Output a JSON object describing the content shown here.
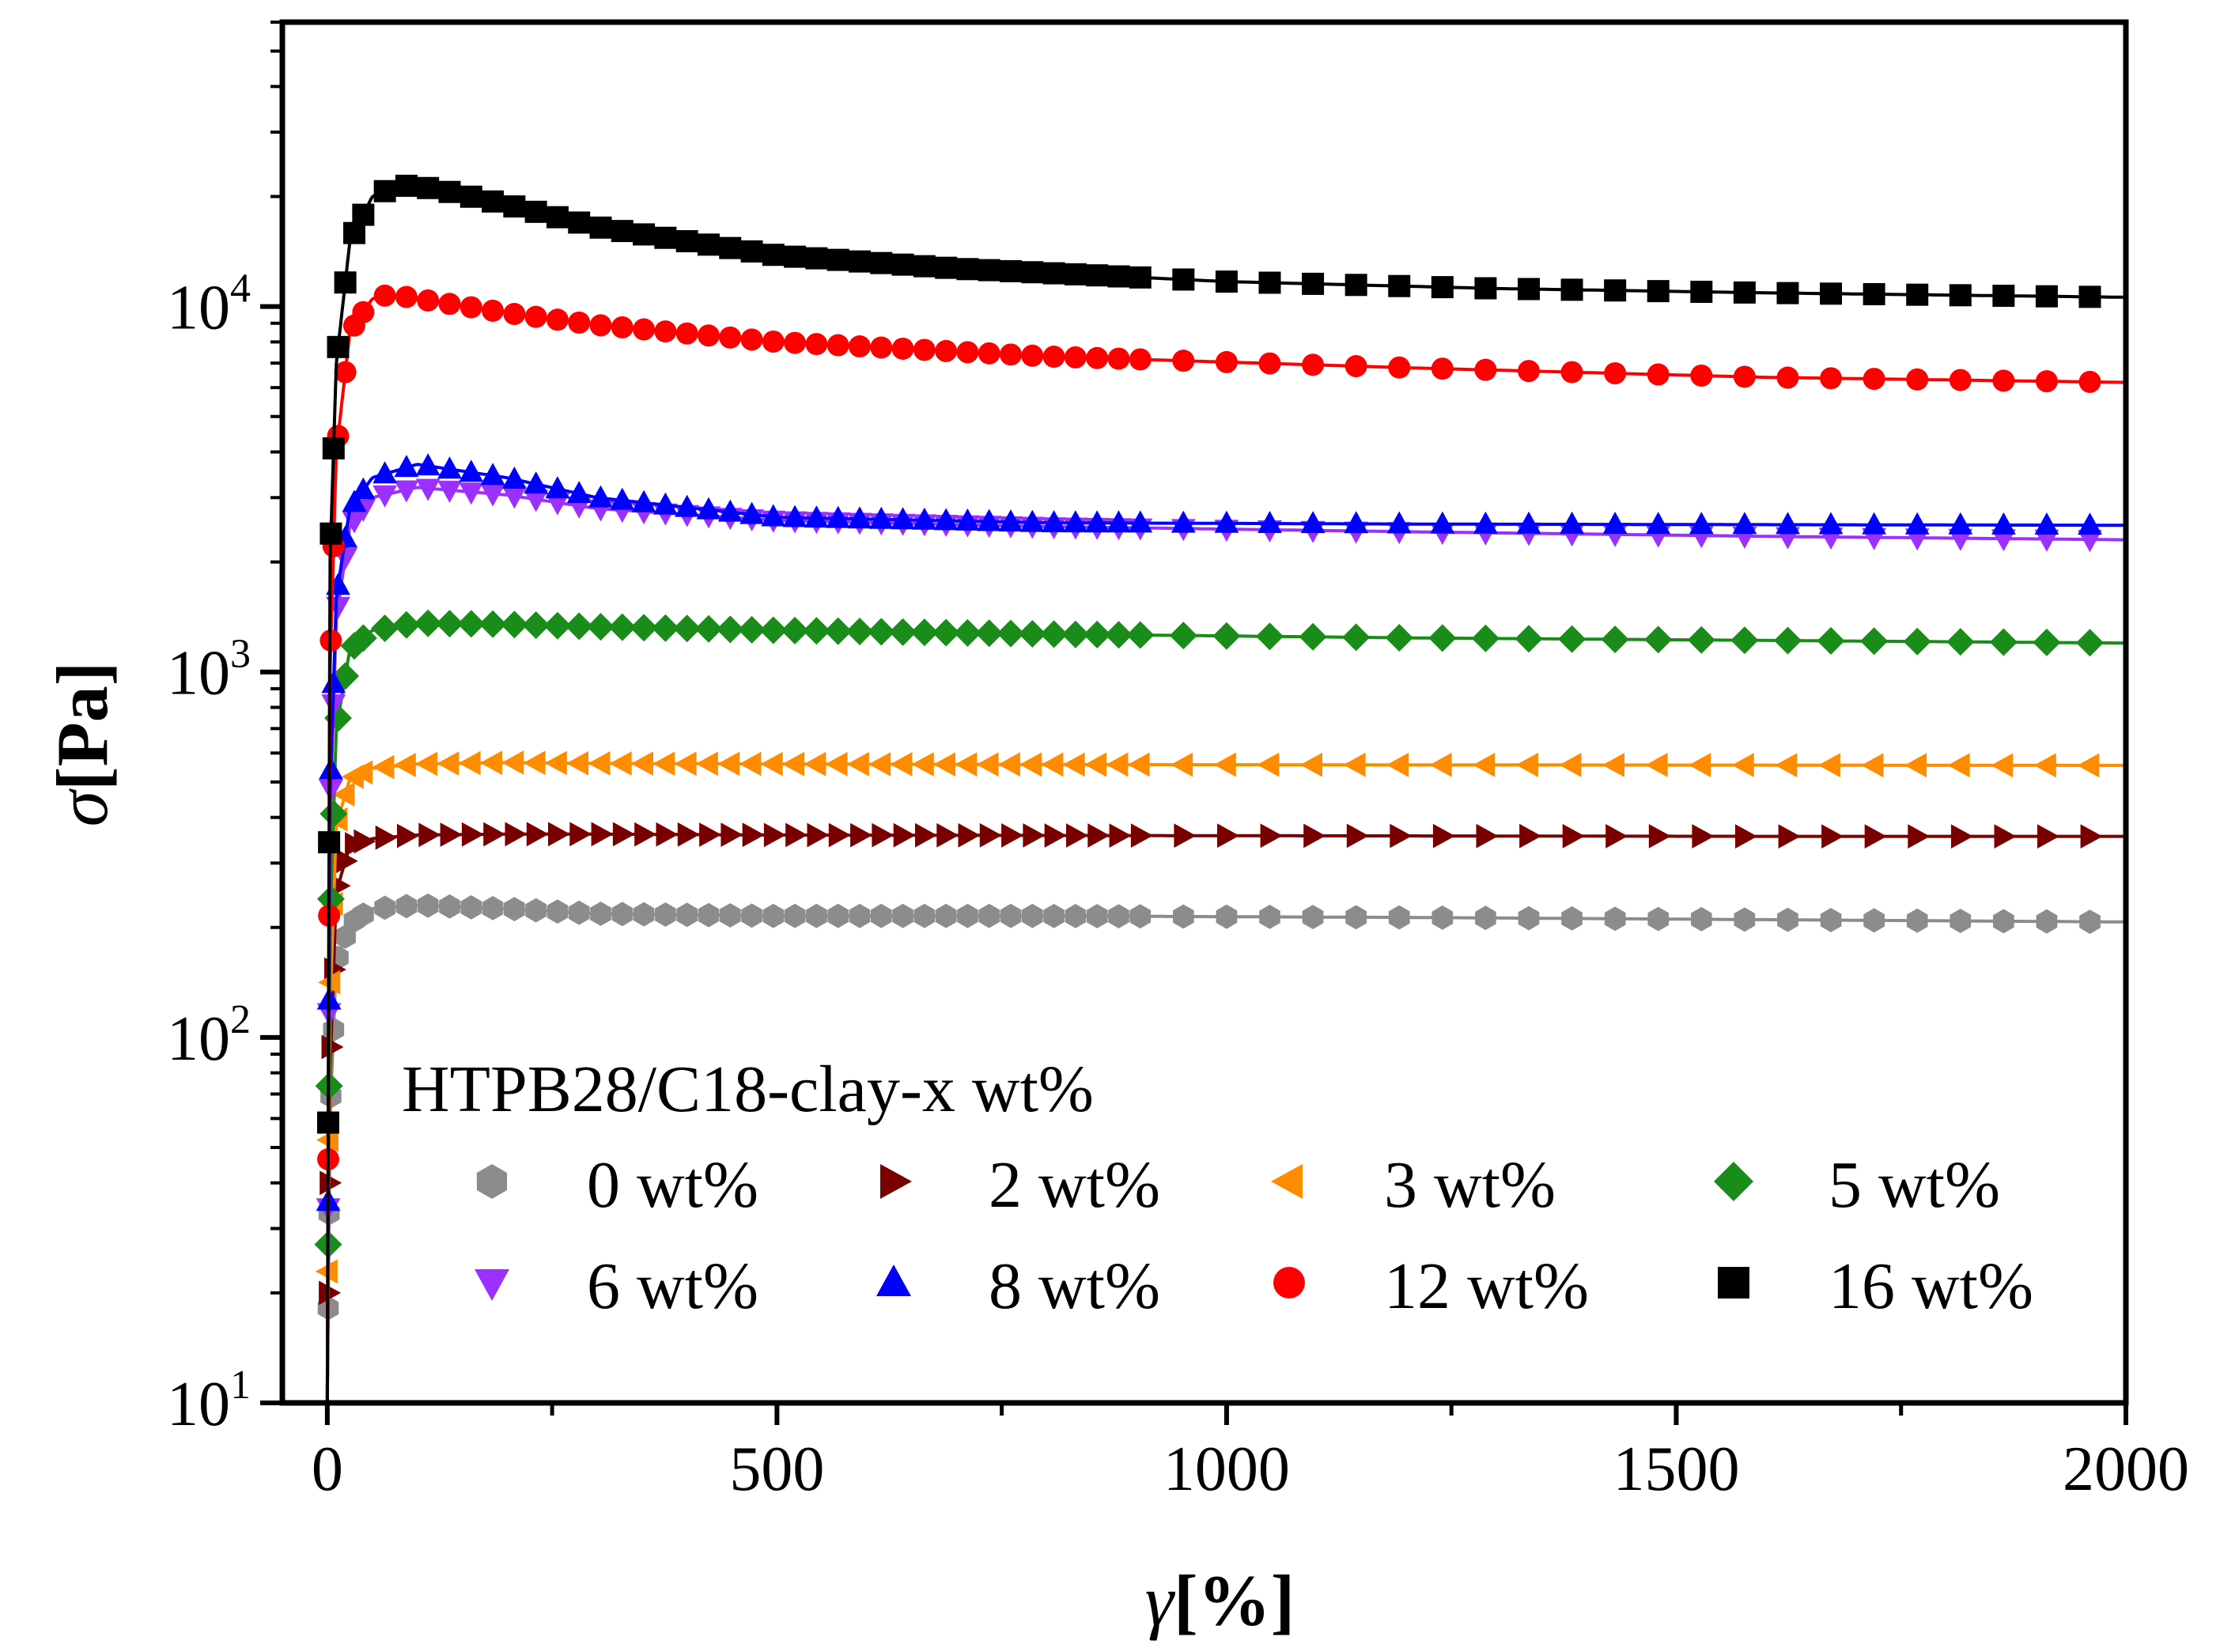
{
  "chart_data": {
    "type": "scatter",
    "xlabel": {
      "symbol": "γ",
      "unit": "[%]"
    },
    "ylabel": {
      "symbol": "σ",
      "unit": "[Pa]"
    },
    "xlim": [
      -50,
      2000
    ],
    "ylim": [
      10,
      60000
    ],
    "yscale": "log",
    "x_ticks": [
      0,
      500,
      1000,
      1500,
      2000
    ],
    "x_tick_labels": [
      "0",
      "500",
      "1000",
      "1500",
      "2000"
    ],
    "y_ticks": [
      10,
      100,
      1000,
      10000
    ],
    "y_tick_labels": [
      {
        "base": "10",
        "exp": "1"
      },
      {
        "base": "10",
        "exp": "2"
      },
      {
        "base": "10",
        "exp": "3"
      },
      {
        "base": "10",
        "exp": "4"
      }
    ],
    "legend": {
      "title": "HTPB28/C18-clay-x wt%",
      "placement": "lower-right",
      "columns": 4
    },
    "grid": false,
    "series": [
      {
        "name": "0 wt%",
        "color": "#8c8c8c",
        "marker": "hexagon",
        "x": [
          0,
          3,
          10,
          25,
          50,
          100,
          200,
          300,
          500,
          800,
          1200,
          1600,
          2000
        ],
        "y": [
          10,
          60,
          160,
          205,
          225,
          230,
          225,
          218,
          215,
          215,
          213,
          210,
          207
        ]
      },
      {
        "name": "2 wt%",
        "color": "#7a0000",
        "marker": "triangle-right",
        "x": [
          0,
          3,
          10,
          25,
          50,
          100,
          200,
          300,
          500,
          800,
          1200,
          1600,
          2000
        ],
        "y": [
          10,
          80,
          250,
          335,
          350,
          358,
          360,
          360,
          358,
          357,
          356,
          355,
          355
        ]
      },
      {
        "name": "3 wt%",
        "color": "#ff8c00",
        "marker": "triangle-left",
        "x": [
          0,
          3,
          10,
          25,
          50,
          100,
          200,
          300,
          500,
          800,
          1200,
          1600,
          2000
        ],
        "y": [
          10,
          120,
          380,
          510,
          545,
          560,
          565,
          562,
          560,
          558,
          557,
          556,
          555
        ]
      },
      {
        "name": "5 wt%",
        "color": "#1a8c1a",
        "marker": "diamond",
        "x": [
          0,
          3,
          10,
          25,
          50,
          100,
          200,
          300,
          500,
          800,
          1200,
          1600,
          2000
        ],
        "y": [
          10,
          200,
          700,
          1150,
          1300,
          1360,
          1350,
          1330,
          1300,
          1270,
          1240,
          1220,
          1200
        ]
      },
      {
        "name": "6 wt%",
        "color": "#9b30ff",
        "marker": "triangle-down",
        "x": [
          0,
          3,
          10,
          25,
          50,
          100,
          200,
          300,
          500,
          800,
          1200,
          1600,
          2000
        ],
        "y": [
          10,
          400,
          1400,
          2500,
          3000,
          3200,
          3050,
          2800,
          2600,
          2500,
          2420,
          2350,
          2300
        ]
      },
      {
        "name": "8 wt%",
        "color": "#0000ff",
        "marker": "triangle-up",
        "x": [
          0,
          3,
          10,
          25,
          50,
          100,
          200,
          300,
          500,
          800,
          1200,
          1600,
          2000
        ],
        "y": [
          10,
          450,
          1600,
          2800,
          3400,
          3700,
          3400,
          3000,
          2650,
          2560,
          2540,
          2530,
          2520
        ]
      },
      {
        "name": "12 wt%",
        "color": "#ff0000",
        "marker": "circle",
        "x": [
          0,
          3,
          10,
          25,
          50,
          70,
          100,
          200,
          300,
          500,
          800,
          1200,
          1600,
          2000
        ],
        "y": [
          10,
          1000,
          4000,
          8500,
          10500,
          10800,
          10500,
          9600,
          8900,
          8000,
          7300,
          6800,
          6400,
          6200
        ]
      },
      {
        "name": "16 wt%",
        "color": "#000000",
        "marker": "square",
        "x": [
          0,
          3,
          10,
          25,
          50,
          80,
          120,
          200,
          300,
          500,
          700,
          1000,
          1300,
          1600,
          2000
        ],
        "y": [
          10,
          2000,
          7000,
          15000,
          20000,
          21500,
          21000,
          19000,
          16500,
          13800,
          12700,
          11700,
          11200,
          10900,
          10600
        ]
      }
    ]
  }
}
